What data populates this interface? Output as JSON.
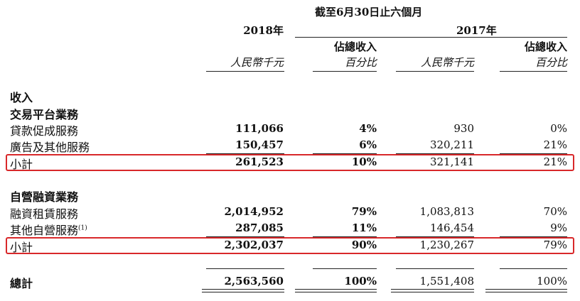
{
  "header": {
    "period": "截至6月30日止六個月",
    "year_current": "2018年",
    "year_prior": "2017年",
    "unit_rmb": "人民幣千元",
    "pct_line1": "佔總收入",
    "pct_line2": "百分比"
  },
  "revenue_title": "收入",
  "sections": [
    {
      "title": "交易平台業務",
      "rows": [
        {
          "label": "貸款促成服務",
          "v2018": "111,066",
          "p2018": "4%",
          "v2017": "930",
          "p2017": "0%"
        },
        {
          "label": "廣告及其他服務",
          "v2018": "150,457",
          "p2018": "6%",
          "v2017": "320,211",
          "p2017": "21%"
        }
      ],
      "subtotal": {
        "label": "小計",
        "v2018": "261,523",
        "p2018": "10%",
        "v2017": "321,141",
        "p2017": "21%"
      }
    },
    {
      "title": "自營融資業務",
      "rows": [
        {
          "label": "融資租賃服務",
          "v2018": "2,014,952",
          "p2018": "79%",
          "v2017": "1,083,813",
          "p2017": "70%"
        },
        {
          "label": "其他自營服務",
          "footnote": "(1)",
          "v2018": "287,085",
          "p2018": "11%",
          "v2017": "146,454",
          "p2017": "9%"
        }
      ],
      "subtotal": {
        "label": "小計",
        "v2018": "2,302,037",
        "p2018": "90%",
        "v2017": "1,230,267",
        "p2017": "79%"
      }
    }
  ],
  "total": {
    "label": "總計",
    "v2018": "2,563,560",
    "p2018": "100%",
    "v2017": "1,551,408",
    "p2017": "100%"
  },
  "colors": {
    "highlight": "#d8282a"
  }
}
